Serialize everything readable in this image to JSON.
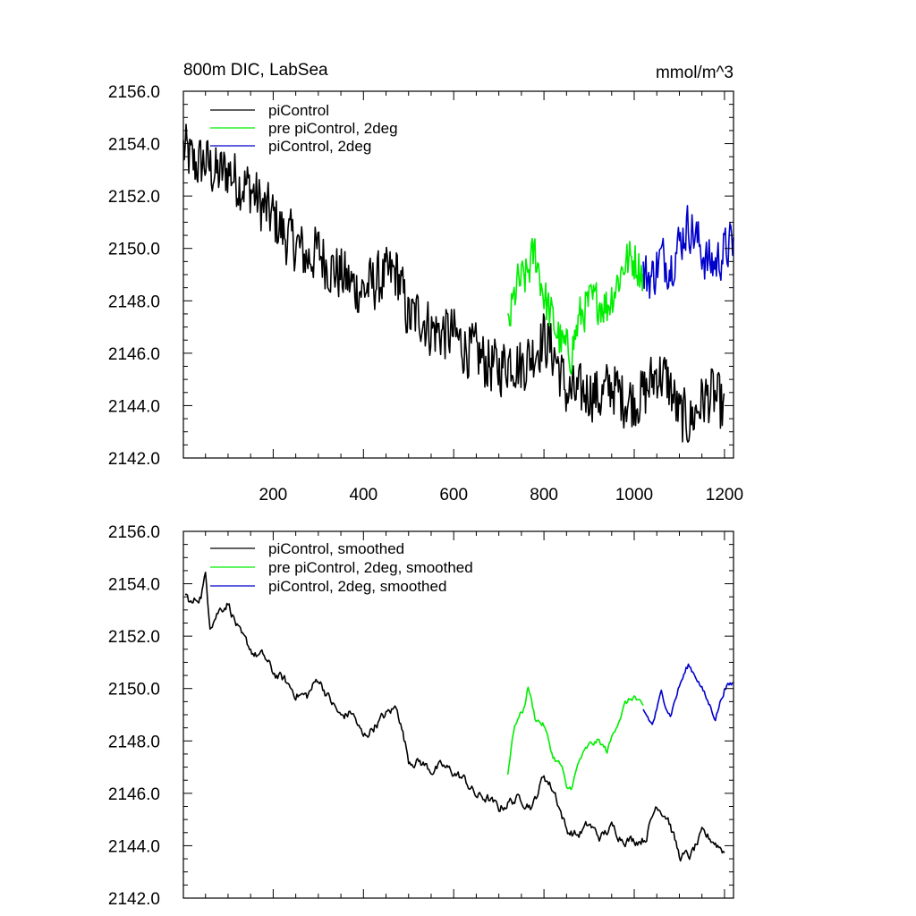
{
  "chart_data": [
    {
      "type": "line",
      "title": "800m DIC, LabSea",
      "units": "mmol/m^3",
      "xlim": [
        1,
        1220
      ],
      "ylim": [
        2142.0,
        2156.0
      ],
      "xticks": [
        200,
        400,
        600,
        800,
        1000,
        1200
      ],
      "xtick_labels": [
        "200",
        "400",
        "600",
        "800",
        "1000",
        "1200"
      ],
      "yticks": [
        2142.0,
        2144.0,
        2146.0,
        2148.0,
        2150.0,
        2152.0,
        2154.0,
        2156.0
      ],
      "ytick_labels": [
        "2142.0",
        "2144.0",
        "2146.0",
        "2148.0",
        "2150.0",
        "2152.0",
        "2154.0",
        "2156.0"
      ],
      "legend_position": "top-left",
      "grid": false,
      "series": [
        {
          "name": "piControl",
          "color": "#000000",
          "x": [
            1,
            25,
            50,
            75,
            100,
            125,
            150,
            175,
            200,
            225,
            250,
            275,
            300,
            325,
            350,
            375,
            400,
            425,
            450,
            475,
            500,
            525,
            550,
            575,
            600,
            625,
            650,
            675,
            700,
            725,
            750,
            775,
            800,
            825,
            850,
            875,
            900,
            925,
            950,
            975,
            1000,
            1025,
            1050,
            1075,
            1100,
            1125,
            1150,
            1175,
            1200
          ],
          "y": [
            2153.8,
            2153.2,
            2153.3,
            2152.8,
            2153.0,
            2152.5,
            2152.3,
            2151.6,
            2151.2,
            2150.5,
            2150.2,
            2149.6,
            2149.9,
            2149.3,
            2149.0,
            2148.6,
            2148.4,
            2148.7,
            2148.9,
            2149.1,
            2147.3,
            2147.5,
            2146.9,
            2146.8,
            2146.7,
            2146.2,
            2146.0,
            2145.6,
            2145.4,
            2145.8,
            2145.5,
            2146.0,
            2146.6,
            2145.9,
            2144.5,
            2144.4,
            2144.6,
            2144.3,
            2144.8,
            2144.3,
            2144.2,
            2144.5,
            2145.3,
            2144.9,
            2143.6,
            2143.4,
            2144.2,
            2144.4,
            2143.8
          ],
          "amplitude": 1.25
        },
        {
          "name": "pre piControl, 2deg",
          "color": "#00ee00",
          "x": [
            720,
            740,
            760,
            780,
            800,
            820,
            840,
            860,
            880,
            900,
            920,
            940,
            960,
            980,
            1000,
            1020
          ],
          "y": [
            2146.9,
            2148.6,
            2148.9,
            2149.9,
            2148.2,
            2147.2,
            2146.3,
            2146.0,
            2147.4,
            2147.9,
            2148.0,
            2147.8,
            2148.6,
            2149.5,
            2149.6,
            2149.0
          ],
          "amplitude": 0.95
        },
        {
          "name": "piControl, 2deg",
          "color": "#0000cc",
          "x": [
            1020,
            1040,
            1060,
            1080,
            1100,
            1120,
            1140,
            1160,
            1180,
            1200,
            1220
          ],
          "y": [
            2149.0,
            2148.9,
            2149.7,
            2149.3,
            2150.2,
            2150.9,
            2150.3,
            2149.5,
            2149.4,
            2149.9,
            2150.2
          ],
          "amplitude": 1.05
        }
      ]
    },
    {
      "type": "line",
      "xlim": [
        1,
        1220
      ],
      "ylim": [
        2142.0,
        2156.0
      ],
      "xticks": [
        200,
        400,
        600,
        800,
        1000,
        1200
      ],
      "yticks": [
        2142.0,
        2144.0,
        2146.0,
        2148.0,
        2150.0,
        2152.0,
        2154.0,
        2156.0
      ],
      "ytick_labels": [
        "2142.0",
        "2144.0",
        "2146.0",
        "2148.0",
        "2150.0",
        "2152.0",
        "2154.0",
        "2156.0"
      ],
      "legend_position": "top-left",
      "grid": false,
      "series": [
        {
          "name": "piControl, smoothed",
          "color": "#000000",
          "x": [
            5,
            20,
            40,
            50,
            60,
            80,
            100,
            130,
            160,
            180,
            200,
            225,
            250,
            275,
            300,
            325,
            350,
            375,
            400,
            425,
            450,
            475,
            500,
            525,
            550,
            575,
            600,
            625,
            650,
            675,
            700,
            725,
            750,
            775,
            800,
            825,
            850,
            875,
            900,
            925,
            950,
            975,
            1000,
            1025,
            1050,
            1075,
            1100,
            1125,
            1150,
            1175,
            1200
          ],
          "y": [
            2153.6,
            2153.2,
            2153.6,
            2154.3,
            2152.5,
            2153.0,
            2153.3,
            2151.9,
            2151.3,
            2151.2,
            2150.6,
            2150.3,
            2149.8,
            2149.7,
            2150.4,
            2149.6,
            2148.9,
            2149.1,
            2148.1,
            2148.6,
            2149.0,
            2149.3,
            2147.3,
            2147.2,
            2146.9,
            2147.0,
            2146.8,
            2146.5,
            2145.9,
            2145.8,
            2145.4,
            2145.7,
            2145.8,
            2145.5,
            2146.7,
            2146.0,
            2144.6,
            2144.4,
            2144.8,
            2144.3,
            2144.7,
            2144.3,
            2144.2,
            2144.3,
            2145.6,
            2145.1,
            2143.6,
            2143.6,
            2144.4,
            2144.2,
            2143.8
          ],
          "amplitude": 0.45
        },
        {
          "name": "pre piControl, 2deg, smoothed",
          "color": "#00ee00",
          "x": [
            720,
            730,
            740,
            755,
            765,
            780,
            800,
            820,
            840,
            850,
            860,
            880,
            900,
            920,
            940,
            960,
            980,
            1000,
            1020
          ],
          "y": [
            2146.7,
            2148.2,
            2148.8,
            2149.2,
            2150.1,
            2148.9,
            2148.6,
            2147.4,
            2147.0,
            2146.1,
            2146.2,
            2147.3,
            2147.8,
            2148.0,
            2147.6,
            2148.6,
            2149.4,
            2149.7,
            2149.2
          ],
          "amplitude": 0.3
        },
        {
          "name": "piControl, 2deg, smoothed",
          "color": "#0000cc",
          "x": [
            1020,
            1040,
            1060,
            1080,
            1100,
            1120,
            1140,
            1160,
            1180,
            1200,
            1220
          ],
          "y": [
            2149.2,
            2148.6,
            2149.8,
            2149.0,
            2150.1,
            2150.9,
            2150.4,
            2149.6,
            2148.9,
            2150.0,
            2150.2
          ],
          "amplitude": 0.3
        }
      ]
    }
  ]
}
